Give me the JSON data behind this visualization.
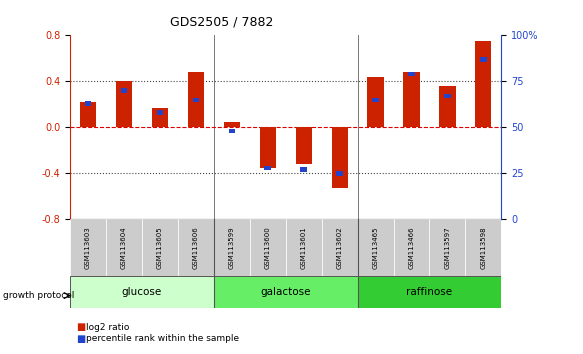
{
  "title": "GDS2505 / 7882",
  "samples": [
    "GSM113603",
    "GSM113604",
    "GSM113605",
    "GSM113606",
    "GSM113599",
    "GSM113600",
    "GSM113601",
    "GSM113602",
    "GSM113465",
    "GSM113466",
    "GSM113597",
    "GSM113598"
  ],
  "log2_ratio": [
    0.22,
    0.4,
    0.17,
    0.48,
    0.05,
    -0.35,
    -0.32,
    -0.53,
    0.44,
    0.48,
    0.36,
    0.75
  ],
  "percentile_rank_pct": [
    63,
    70,
    58,
    65,
    48,
    28,
    27,
    25,
    65,
    79,
    67,
    87
  ],
  "ylim": [
    -0.8,
    0.8
  ],
  "yticks_left": [
    -0.8,
    -0.4,
    0.0,
    0.4,
    0.8
  ],
  "yticks_right": [
    0,
    25,
    50,
    75,
    100
  ],
  "groups": [
    {
      "label": "glucose",
      "start": 0,
      "end": 4,
      "color": "#ccffcc"
    },
    {
      "label": "galactose",
      "start": 4,
      "end": 8,
      "color": "#66ee66"
    },
    {
      "label": "raffinose",
      "start": 8,
      "end": 12,
      "color": "#33cc33"
    }
  ],
  "bar_color_red": "#cc2200",
  "bar_color_blue": "#2244cc",
  "hline_color_red": "#dd0000",
  "hline_color_dotted": "#444444",
  "bg_color": "#ffffff",
  "plot_bg": "#ffffff",
  "left_label_color": "#cc2200",
  "right_label_color": "#2244cc",
  "sample_box_color": "#cccccc",
  "spine_color": "#000000"
}
